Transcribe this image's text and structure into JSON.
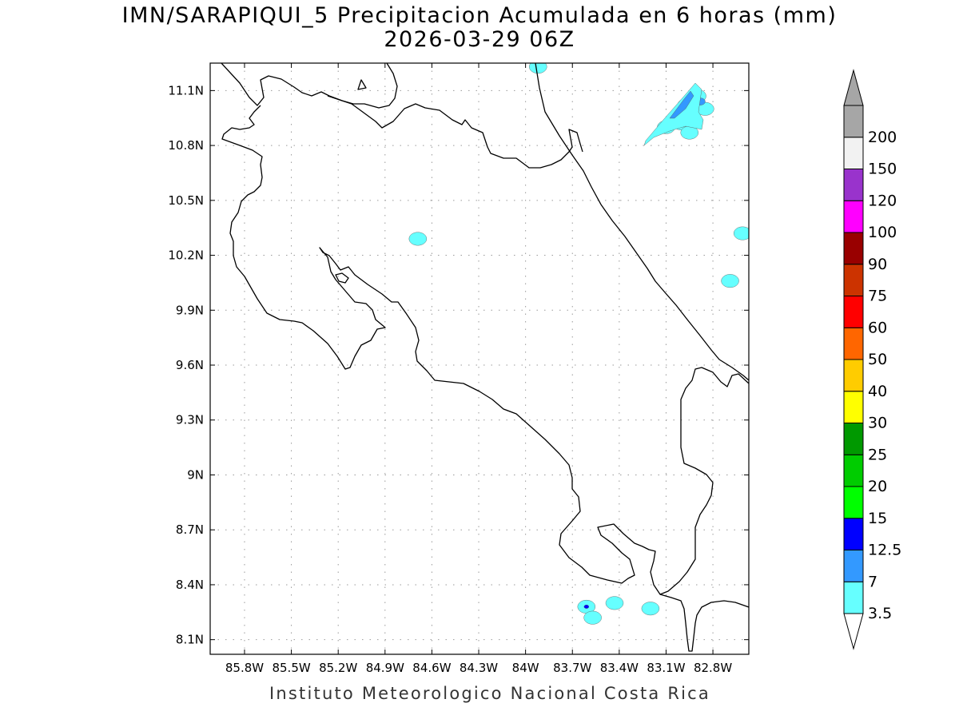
{
  "title": {
    "line1": "IMN/SARAPIQUI_5 Precipitacion Acumulada en 6 horas (mm)",
    "line2": "2026-03-29 06Z"
  },
  "footer": {
    "credit": "Instituto Meteorologico Nacional Costa Rica"
  },
  "map": {
    "lon_range": [
      -86.02,
      -82.57
    ],
    "lat_range": [
      8.02,
      11.25
    ],
    "lon_ticks": [
      {
        "value": -85.8,
        "label": "85.8W"
      },
      {
        "value": -85.5,
        "label": "85.5W"
      },
      {
        "value": -85.2,
        "label": "85.2W"
      },
      {
        "value": -84.9,
        "label": "84.9W"
      },
      {
        "value": -84.6,
        "label": "84.6W"
      },
      {
        "value": -84.3,
        "label": "84.3W"
      },
      {
        "value": -84.0,
        "label": "84W"
      },
      {
        "value": -83.7,
        "label": "83.7W"
      },
      {
        "value": -83.4,
        "label": "83.4W"
      },
      {
        "value": -83.1,
        "label": "83.1W"
      },
      {
        "value": -82.8,
        "label": "82.8W"
      }
    ],
    "lat_ticks": [
      {
        "value": 11.1,
        "label": "11.1N"
      },
      {
        "value": 10.8,
        "label": "10.8N"
      },
      {
        "value": 10.5,
        "label": "10.5N"
      },
      {
        "value": 10.2,
        "label": "10.2N"
      },
      {
        "value": 9.9,
        "label": "9.9N"
      },
      {
        "value": 9.6,
        "label": "9.6N"
      },
      {
        "value": 9.3,
        "label": "9.3N"
      },
      {
        "value": 9.0,
        "label": "9N"
      },
      {
        "value": 8.7,
        "label": "8.7N"
      },
      {
        "value": 8.4,
        "label": "8.4N"
      },
      {
        "value": 8.1,
        "label": "8.1N"
      }
    ],
    "grid": "dotted",
    "coastline_color": "#000000",
    "precip_cells": [
      {
        "lon": -82.97,
        "lat": 11.02,
        "level": "3.5"
      },
      {
        "lon": -82.9,
        "lat": 11.07,
        "level": "3.5"
      },
      {
        "lon": -82.85,
        "lat": 11.0,
        "level": "3.5"
      },
      {
        "lon": -83.0,
        "lat": 10.92,
        "level": "3.5"
      },
      {
        "lon": -83.1,
        "lat": 10.9,
        "level": "3.5"
      },
      {
        "lon": -82.88,
        "lat": 11.04,
        "level": "7"
      },
      {
        "lon": -83.06,
        "lat": 10.92,
        "level": "7"
      },
      {
        "lon": -82.95,
        "lat": 10.87,
        "level": "3.5"
      },
      {
        "lon": -82.61,
        "lat": 10.32,
        "level": "3.5"
      },
      {
        "lon": -82.69,
        "lat": 10.06,
        "level": "3.5"
      },
      {
        "lon": -84.69,
        "lat": 10.29,
        "level": "3.5"
      },
      {
        "lon": -83.92,
        "lat": 11.23,
        "level": "3.5"
      },
      {
        "lon": -83.61,
        "lat": 8.28,
        "level": "3.5"
      },
      {
        "lon": -83.61,
        "lat": 8.28,
        "level": "12.5"
      },
      {
        "lon": -83.57,
        "lat": 8.22,
        "level": "3.5"
      },
      {
        "lon": -83.43,
        "lat": 8.3,
        "level": "3.5"
      },
      {
        "lon": -83.2,
        "lat": 8.27,
        "level": "3.5"
      }
    ]
  },
  "legend": {
    "entries": [
      {
        "label": "3.5",
        "color": "#66ffff"
      },
      {
        "label": "7",
        "color": "#3399ff"
      },
      {
        "label": "12.5",
        "color": "#0000ff"
      },
      {
        "label": "15",
        "color": "#00ff00"
      },
      {
        "label": "20",
        "color": "#00cc00"
      },
      {
        "label": "25",
        "color": "#009900"
      },
      {
        "label": "30",
        "color": "#ffff00"
      },
      {
        "label": "40",
        "color": "#ffcc00"
      },
      {
        "label": "50",
        "color": "#ff6600"
      },
      {
        "label": "60",
        "color": "#ff0000"
      },
      {
        "label": "75",
        "color": "#cc3300"
      },
      {
        "label": "90",
        "color": "#990000"
      },
      {
        "label": "100",
        "color": "#ff00ff"
      },
      {
        "label": "120",
        "color": "#9933cc"
      },
      {
        "label": "150",
        "color": "#f2f2f2"
      },
      {
        "label": "200",
        "color": "#a6a6a6"
      }
    ],
    "below_color": "#ffffff",
    "above_color": "#a6a6a6"
  }
}
